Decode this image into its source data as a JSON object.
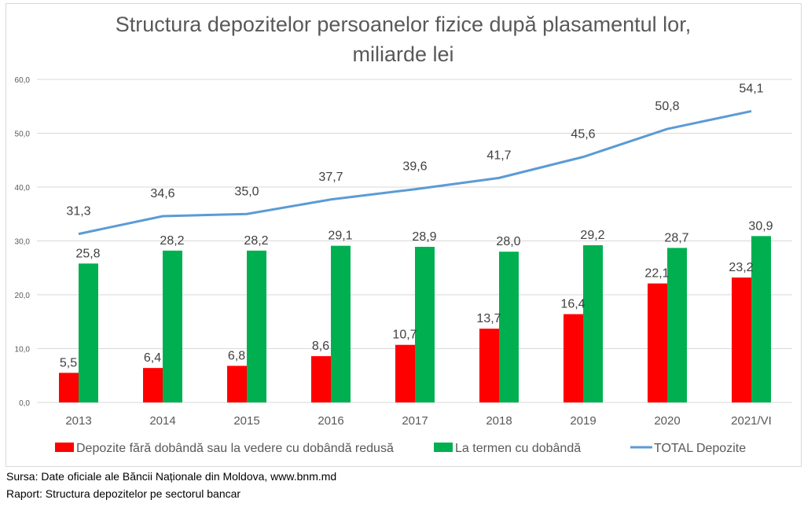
{
  "chart_data": {
    "type": "bar",
    "title_line1": "Structura depozitelor persoanelor fizice după plasamentul lor,",
    "title_line2": "miliarde lei",
    "categories": [
      "2013",
      "2014",
      "2015",
      "2016",
      "2017",
      "2018",
      "2019",
      "2020",
      "2021/VI"
    ],
    "ylim": [
      0,
      60
    ],
    "yticks": [
      "0,0",
      "10,0",
      "20,0",
      "30,0",
      "40,0",
      "50,0",
      "60,0"
    ],
    "grid": true,
    "legend_position": "bottom",
    "series": [
      {
        "name": "Depozite fără dobândă sau la vedere cu dobândă redusă",
        "type": "bar",
        "color": "#ff0000",
        "values": [
          5.5,
          6.4,
          6.8,
          8.6,
          10.7,
          13.7,
          16.4,
          22.1,
          23.2
        ],
        "labels": [
          "5,5",
          "6,4",
          "6,8",
          "8,6",
          "10,7",
          "13,7",
          "16,4",
          "22,1",
          "23,2"
        ]
      },
      {
        "name": "La termen cu dobândă",
        "type": "bar",
        "color": "#00b050",
        "values": [
          25.8,
          28.2,
          28.2,
          29.1,
          28.9,
          28.0,
          29.2,
          28.7,
          30.9
        ],
        "labels": [
          "25,8",
          "28,2",
          "28,2",
          "29,1",
          "28,9",
          "28,0",
          "29,2",
          "28,7",
          "30,9"
        ]
      },
      {
        "name": "TOTAL Depozite",
        "type": "line",
        "color": "#5b9bd5",
        "values": [
          31.3,
          34.6,
          35.0,
          37.7,
          39.6,
          41.7,
          45.6,
          50.8,
          54.1
        ],
        "labels": [
          "31,3",
          "34,6",
          "35,0",
          "37,7",
          "39,6",
          "41,7",
          "45,6",
          "50,8",
          "54,1"
        ]
      }
    ]
  },
  "source": {
    "line1": "Sursa: Date oficiale ale Băncii Naționale din Moldova, www.bnm.md",
    "line2": "Raport: Structura depozitelor pe sectorul bancar"
  }
}
